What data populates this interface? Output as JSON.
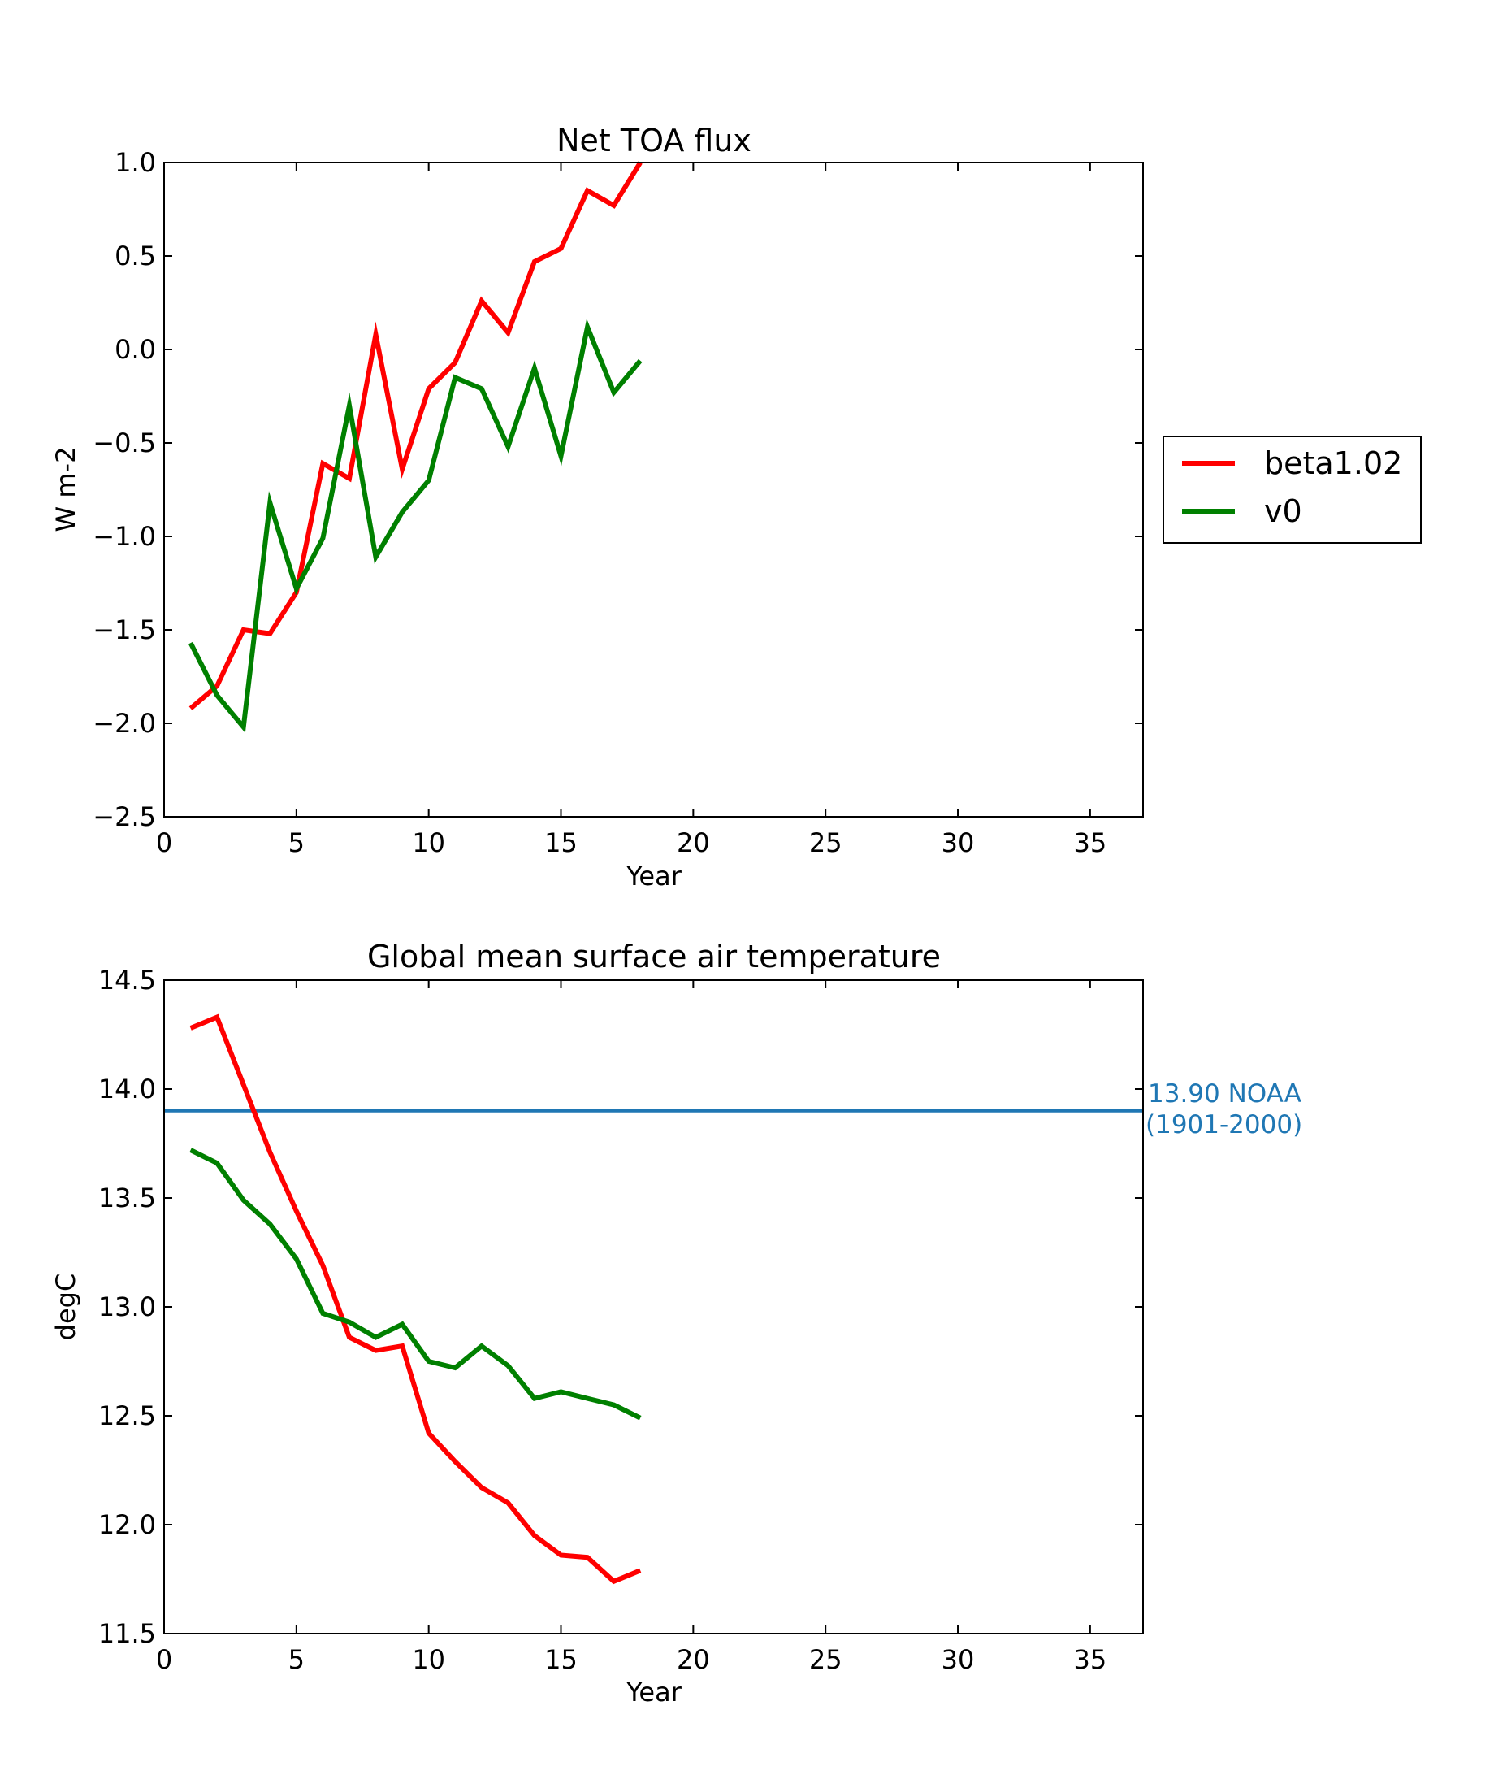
{
  "chart_data": [
    {
      "type": "line",
      "title": "Net TOA flux",
      "xlabel": "Year",
      "ylabel": "W m-2",
      "xlim": [
        0,
        37
      ],
      "ylim": [
        -2.5,
        1.0
      ],
      "xticks": [
        0,
        5,
        10,
        15,
        20,
        25,
        30,
        35
      ],
      "xtick_labels": [
        "0",
        "5",
        "10",
        "15",
        "20",
        "25",
        "30",
        "35"
      ],
      "yticks": [
        -2.5,
        -2.0,
        -1.5,
        -1.0,
        -0.5,
        0.0,
        0.5,
        1.0
      ],
      "ytick_labels": [
        "−2.5",
        "−2.0",
        "−1.5",
        "−1.0",
        "−0.5",
        "0.0",
        "0.5",
        "1.0"
      ],
      "grid": false,
      "legend": {
        "placement": "outside-right"
      },
      "x": [
        1,
        2,
        3,
        4,
        5,
        6,
        7,
        8,
        9,
        10,
        11,
        12,
        13,
        14,
        15,
        16,
        17,
        18
      ],
      "series": [
        {
          "name": "beta1.02",
          "color": "#ff0000",
          "values": [
            -1.92,
            -1.8,
            -1.5,
            -1.52,
            -1.3,
            -0.61,
            -0.69,
            0.08,
            -0.64,
            -0.21,
            -0.07,
            0.26,
            0.09,
            0.47,
            0.54,
            0.85,
            0.77,
            1.0
          ]
        },
        {
          "name": "v0",
          "color": "#008000",
          "values": [
            -1.57,
            -1.85,
            -2.02,
            -0.82,
            -1.28,
            -1.01,
            -0.3,
            -1.11,
            -0.87,
            -0.7,
            -0.15,
            -0.21,
            -0.52,
            -0.1,
            -0.57,
            0.12,
            -0.23,
            -0.06
          ]
        }
      ]
    },
    {
      "type": "line",
      "title": "Global mean surface air temperature",
      "xlabel": "Year",
      "ylabel": "degC",
      "xlim": [
        0,
        37
      ],
      "ylim": [
        11.5,
        14.5
      ],
      "xticks": [
        0,
        5,
        10,
        15,
        20,
        25,
        30,
        35
      ],
      "xtick_labels": [
        "0",
        "5",
        "10",
        "15",
        "20",
        "25",
        "30",
        "35"
      ],
      "yticks": [
        11.5,
        12.0,
        12.5,
        13.0,
        13.5,
        14.0,
        14.5
      ],
      "ytick_labels": [
        "11.5",
        "12.0",
        "12.5",
        "13.0",
        "13.5",
        "14.0",
        "14.5"
      ],
      "grid": false,
      "x": [
        1,
        2,
        3,
        4,
        5,
        6,
        7,
        8,
        9,
        10,
        11,
        12,
        13,
        14,
        15,
        16,
        17,
        18
      ],
      "series": [
        {
          "name": "beta1.02",
          "color": "#ff0000",
          "values": [
            14.28,
            14.33,
            14.02,
            13.71,
            13.44,
            13.19,
            12.86,
            12.8,
            12.82,
            12.42,
            12.29,
            12.17,
            12.1,
            11.95,
            11.86,
            11.85,
            11.74,
            11.79
          ]
        },
        {
          "name": "v0",
          "color": "#008000",
          "values": [
            13.72,
            13.66,
            13.49,
            13.38,
            13.22,
            12.97,
            12.93,
            12.86,
            12.92,
            12.75,
            12.72,
            12.82,
            12.73,
            12.58,
            12.61,
            12.58,
            12.55,
            12.49
          ]
        }
      ],
      "reference_line": {
        "value": 13.9,
        "color": "#1f77b4",
        "label_line1": "13.90 NOAA",
        "label_line2": "(1901-2000)"
      }
    }
  ]
}
